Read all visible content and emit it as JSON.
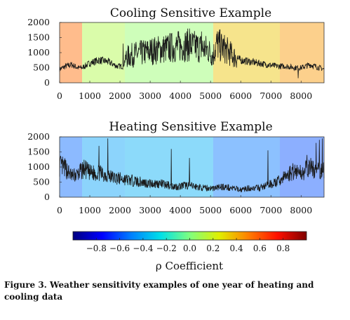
{
  "chart_data": [
    {
      "type": "line",
      "title": "Cooling Sensitive Example",
      "xlim": [
        0,
        8760
      ],
      "ylim": [
        0,
        2000
      ],
      "xticks": [
        0,
        1000,
        2000,
        3000,
        4000,
        5000,
        6000,
        7000,
        8000
      ],
      "yticks": [
        0,
        500,
        1000,
        1500,
        2000
      ],
      "grid": false,
      "background_segments": [
        {
          "x": [
            0,
            744
          ],
          "rho": 0.55
        },
        {
          "x": [
            744,
            2160
          ],
          "rho": 0.12
        },
        {
          "x": [
            2160,
            5088
          ],
          "rho": 0.05
        },
        {
          "x": [
            5088,
            7296
          ],
          "rho": 0.35
        },
        {
          "x": [
            7296,
            8760
          ],
          "rho": 0.45
        }
      ],
      "series": [
        {
          "x": [
            0,
            200,
            400,
            600,
            744,
            1000,
            1300,
            1600,
            1900,
            2100,
            2200,
            2500,
            2800,
            3000,
            3300,
            3600,
            3900,
            4200,
            4500,
            4700,
            4900,
            5088,
            5200,
            5500,
            5800,
            6000,
            6300,
            6600,
            6900,
            7200,
            7500,
            7800,
            8000,
            8300,
            8600,
            8760
          ],
          "y": [
            450,
            550,
            600,
            500,
            500,
            650,
            750,
            700,
            550,
            550,
            850,
            950,
            1000,
            1050,
            1100,
            1150,
            1200,
            1250,
            1200,
            1150,
            1100,
            900,
            1300,
            1100,
            850,
            750,
            700,
            650,
            600,
            550,
            550,
            500,
            500,
            600,
            500,
            450
          ]
        }
      ]
    },
    {
      "type": "line",
      "title": "Heating Sensitive Example",
      "xlim": [
        0,
        8760
      ],
      "ylim": [
        0,
        2000
      ],
      "xticks": [
        0,
        1000,
        2000,
        3000,
        4000,
        5000,
        6000,
        7000,
        8000
      ],
      "yticks": [
        0,
        500,
        1000,
        1500,
        2000
      ],
      "grid": false,
      "background_segments": [
        {
          "x": [
            0,
            744
          ],
          "rho": -0.55
        },
        {
          "x": [
            744,
            2160
          ],
          "rho": -0.42
        },
        {
          "x": [
            2160,
            5088
          ],
          "rho": -0.38
        },
        {
          "x": [
            5088,
            7296
          ],
          "rho": -0.52
        },
        {
          "x": [
            7296,
            8760
          ],
          "rho": -0.6
        }
      ],
      "series": [
        {
          "x": [
            0,
            200,
            400,
            600,
            800,
            1000,
            1300,
            1500,
            1800,
            2100,
            2400,
            2700,
            3000,
            3300,
            3600,
            3900,
            4200,
            4500,
            4800,
            5100,
            5400,
            5700,
            6000,
            6300,
            6600,
            6900,
            7200,
            7500,
            7800,
            8000,
            8300,
            8500,
            8760
          ],
          "y": [
            1050,
            950,
            700,
            750,
            950,
            800,
            800,
            750,
            650,
            600,
            550,
            500,
            450,
            450,
            400,
            350,
            400,
            350,
            300,
            300,
            350,
            300,
            250,
            300,
            300,
            400,
            500,
            700,
            900,
            800,
            1000,
            850,
            900
          ]
        }
      ]
    }
  ],
  "colorbar": {
    "label": "ρ Coefficient",
    "range": [
      -1,
      1
    ],
    "ticks": [
      "−0.8",
      "−0.6",
      "−0.4",
      "−0.2",
      "0.0",
      "0.2",
      "0.4",
      "0.6",
      "0.8"
    ],
    "tick_values": [
      -0.8,
      -0.6,
      -0.4,
      -0.2,
      0.0,
      0.2,
      0.4,
      0.6,
      0.8
    ],
    "colormap": [
      "#00007f",
      "#0000ff",
      "#0080ff",
      "#00e0e8",
      "#7fff7f",
      "#e0f000",
      "#ff8000",
      "#ff1000",
      "#7f0000"
    ]
  },
  "caption": "Figure 3. Weather sensitivity examples of one year of heating and cooling data"
}
